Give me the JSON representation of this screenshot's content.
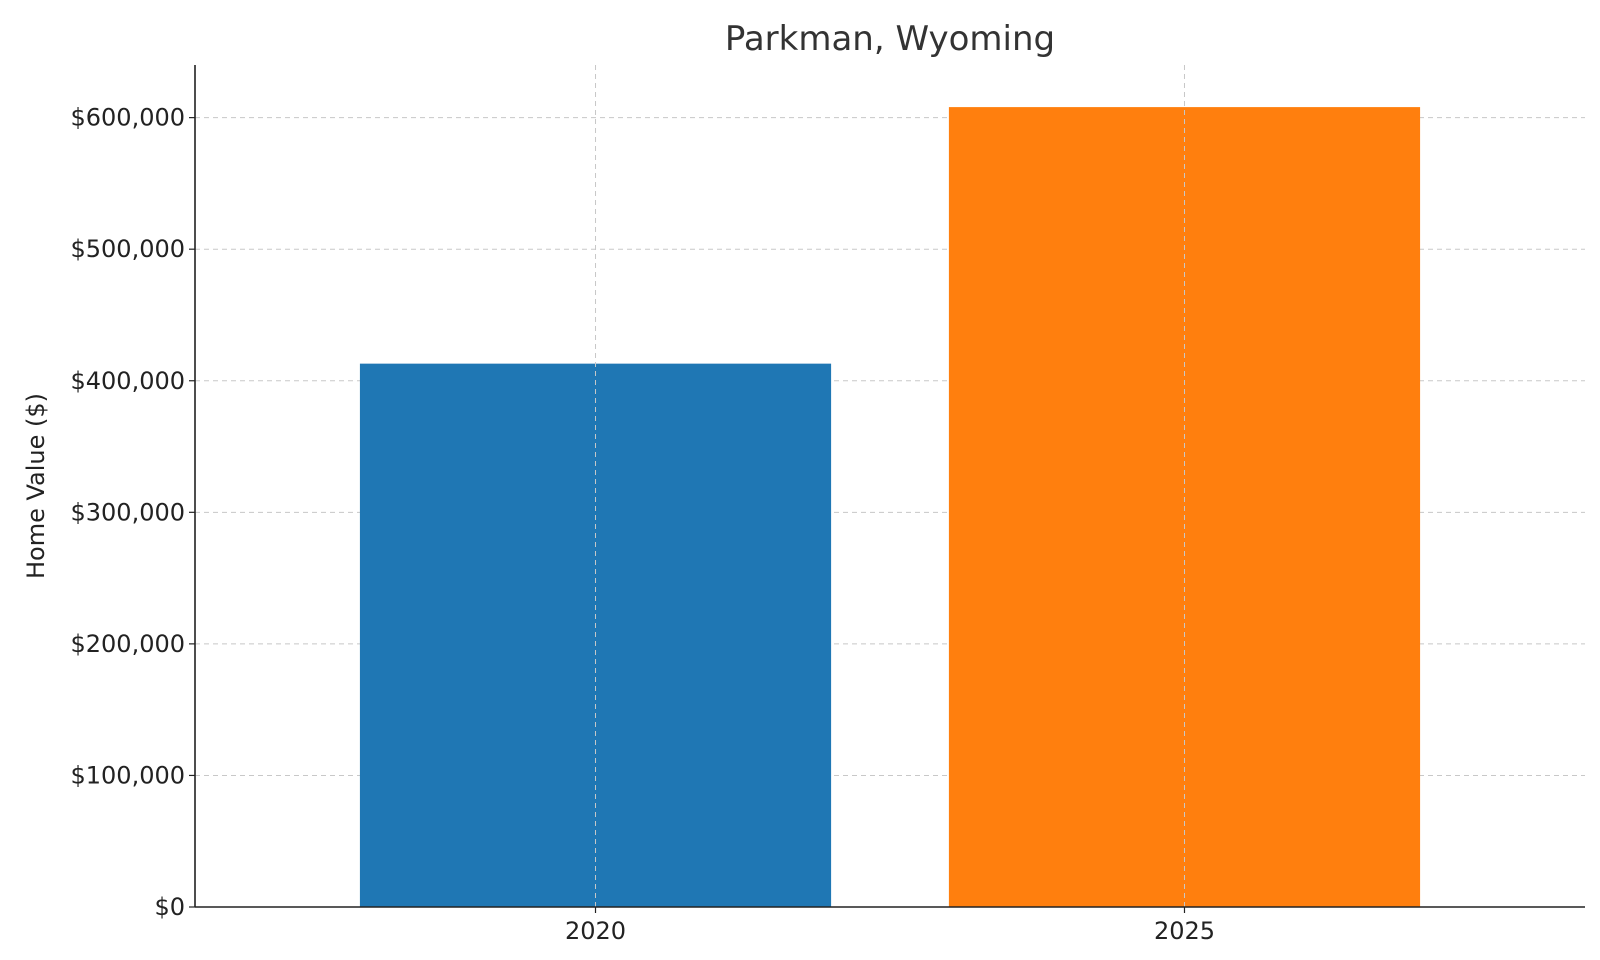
{
  "chart_data": {
    "type": "bar",
    "title": "Parkman, Wyoming",
    "xlabel": "",
    "ylabel": "Home Value ($)",
    "categories": [
      "2020",
      "2025"
    ],
    "values": [
      413000,
      608000
    ],
    "colors": [
      "#1f77b4",
      "#ff7f0e"
    ],
    "ylim": [
      0,
      640000
    ],
    "yticks": [
      0,
      100000,
      200000,
      300000,
      400000,
      500000,
      600000
    ],
    "ytick_labels": [
      "$0",
      "$100,000",
      "$200,000",
      "$300,000",
      "$400,000",
      "$500,000",
      "$600,000"
    ],
    "grid": true,
    "legend": "none"
  }
}
